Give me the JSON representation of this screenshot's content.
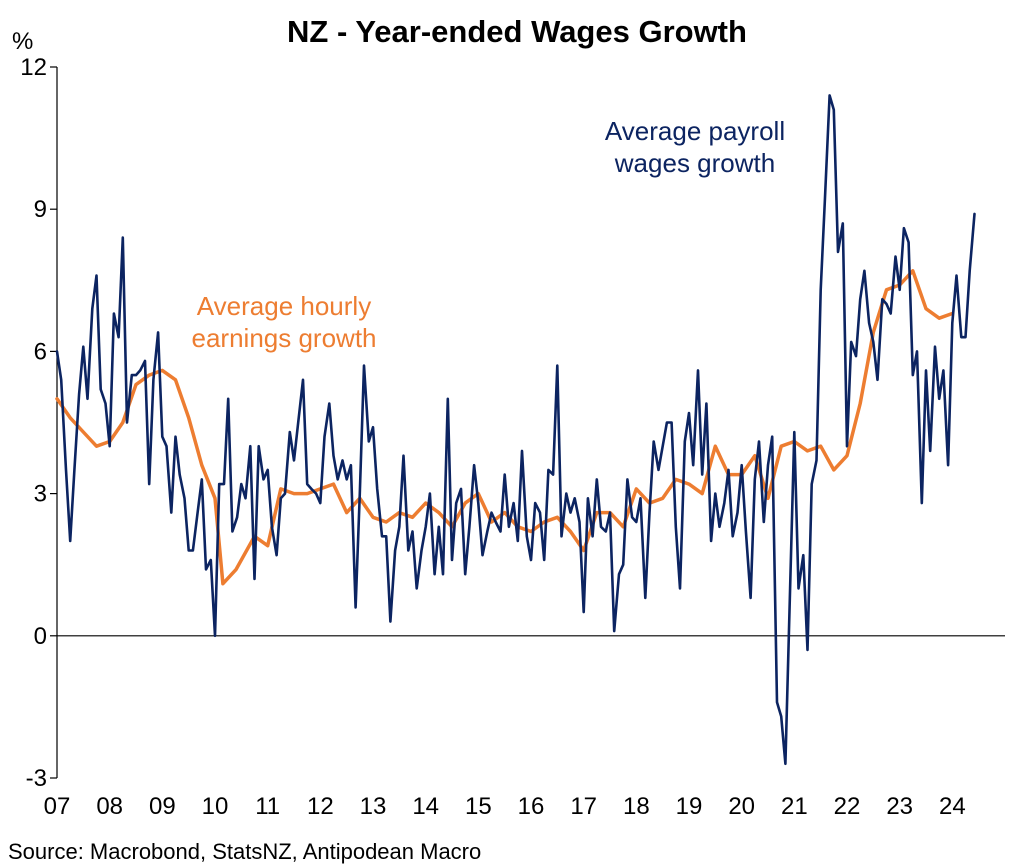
{
  "chart_data": {
    "type": "line",
    "title": "NZ - Year-ended Wages Growth",
    "ylabel": "%",
    "xlabel": "",
    "ylim": [
      -3,
      12
    ],
    "yticks": [
      -3,
      0,
      3,
      6,
      9,
      12
    ],
    "xlim": [
      2007.0,
      2025.0
    ],
    "xticks": [
      {
        "value": 2007,
        "label": "07"
      },
      {
        "value": 2008,
        "label": "08"
      },
      {
        "value": 2009,
        "label": "09"
      },
      {
        "value": 2010,
        "label": "10"
      },
      {
        "value": 2011,
        "label": "11"
      },
      {
        "value": 2012,
        "label": "12"
      },
      {
        "value": 2013,
        "label": "13"
      },
      {
        "value": 2014,
        "label": "14"
      },
      {
        "value": 2015,
        "label": "15"
      },
      {
        "value": 2016,
        "label": "16"
      },
      {
        "value": 2017,
        "label": "17"
      },
      {
        "value": 2018,
        "label": "18"
      },
      {
        "value": 2019,
        "label": "19"
      },
      {
        "value": 2020,
        "label": "20"
      },
      {
        "value": 2021,
        "label": "21"
      },
      {
        "value": 2022,
        "label": "22"
      },
      {
        "value": 2023,
        "label": "23"
      },
      {
        "value": 2024,
        "label": "24"
      }
    ],
    "grid": false,
    "annotations": [
      "Average hourly\nearnings growth",
      "Average payroll\nwages growth"
    ],
    "source": "Source: Macrobond, StatsNZ, Antipodean Macro",
    "series": [
      {
        "name": "Average hourly earnings growth",
        "color": "#ED7D31",
        "points": [
          [
            2007.0,
            5.0
          ],
          [
            2007.25,
            4.6
          ],
          [
            2007.5,
            4.3
          ],
          [
            2007.75,
            4.0
          ],
          [
            2008.0,
            4.1
          ],
          [
            2008.25,
            4.5
          ],
          [
            2008.5,
            5.3
          ],
          [
            2008.75,
            5.5
          ],
          [
            2009.0,
            5.6
          ],
          [
            2009.25,
            5.4
          ],
          [
            2009.5,
            4.6
          ],
          [
            2009.75,
            3.6
          ],
          [
            2010.0,
            2.9
          ],
          [
            2010.15,
            1.1
          ],
          [
            2010.4,
            1.4
          ],
          [
            2010.75,
            2.1
          ],
          [
            2011.0,
            1.9
          ],
          [
            2011.25,
            3.1
          ],
          [
            2011.5,
            3.0
          ],
          [
            2011.75,
            3.0
          ],
          [
            2012.0,
            3.1
          ],
          [
            2012.25,
            3.2
          ],
          [
            2012.5,
            2.6
          ],
          [
            2012.75,
            2.9
          ],
          [
            2013.0,
            2.5
          ],
          [
            2013.25,
            2.4
          ],
          [
            2013.5,
            2.6
          ],
          [
            2013.75,
            2.5
          ],
          [
            2014.0,
            2.8
          ],
          [
            2014.25,
            2.6
          ],
          [
            2014.5,
            2.3
          ],
          [
            2014.75,
            2.8
          ],
          [
            2015.0,
            3.0
          ],
          [
            2015.25,
            2.4
          ],
          [
            2015.5,
            2.6
          ],
          [
            2015.75,
            2.3
          ],
          [
            2016.0,
            2.2
          ],
          [
            2016.25,
            2.4
          ],
          [
            2016.5,
            2.5
          ],
          [
            2016.75,
            2.2
          ],
          [
            2017.0,
            1.8
          ],
          [
            2017.25,
            2.6
          ],
          [
            2017.5,
            2.6
          ],
          [
            2017.75,
            2.3
          ],
          [
            2018.0,
            3.1
          ],
          [
            2018.25,
            2.8
          ],
          [
            2018.5,
            2.9
          ],
          [
            2018.75,
            3.3
          ],
          [
            2019.0,
            3.2
          ],
          [
            2019.25,
            3.0
          ],
          [
            2019.5,
            4.0
          ],
          [
            2019.75,
            3.4
          ],
          [
            2020.0,
            3.4
          ],
          [
            2020.25,
            3.8
          ],
          [
            2020.5,
            2.9
          ],
          [
            2020.75,
            4.0
          ],
          [
            2021.0,
            4.1
          ],
          [
            2021.25,
            3.9
          ],
          [
            2021.5,
            4.0
          ],
          [
            2021.75,
            3.5
          ],
          [
            2022.0,
            3.8
          ],
          [
            2022.25,
            4.9
          ],
          [
            2022.5,
            6.4
          ],
          [
            2022.75,
            7.3
          ],
          [
            2023.0,
            7.4
          ],
          [
            2023.25,
            7.7
          ],
          [
            2023.5,
            6.9
          ],
          [
            2023.75,
            6.7
          ],
          [
            2024.0,
            6.8
          ]
        ]
      },
      {
        "name": "Average payroll wages growth",
        "color": "#0C2461",
        "points": [
          [
            2007.0,
            6.0
          ],
          [
            2007.08,
            5.4
          ],
          [
            2007.17,
            3.5
          ],
          [
            2007.25,
            2.0
          ],
          [
            2007.33,
            3.5
          ],
          [
            2007.42,
            5.1
          ],
          [
            2007.5,
            6.1
          ],
          [
            2007.58,
            5.0
          ],
          [
            2007.67,
            6.9
          ],
          [
            2007.75,
            7.6
          ],
          [
            2007.83,
            5.2
          ],
          [
            2007.92,
            4.9
          ],
          [
            2008.0,
            4.0
          ],
          [
            2008.08,
            6.8
          ],
          [
            2008.17,
            6.3
          ],
          [
            2008.25,
            8.4
          ],
          [
            2008.33,
            4.5
          ],
          [
            2008.42,
            5.5
          ],
          [
            2008.5,
            5.5
          ],
          [
            2008.58,
            5.6
          ],
          [
            2008.67,
            5.8
          ],
          [
            2008.75,
            3.2
          ],
          [
            2008.83,
            5.4
          ],
          [
            2008.92,
            6.4
          ],
          [
            2009.0,
            4.2
          ],
          [
            2009.08,
            4.0
          ],
          [
            2009.17,
            2.6
          ],
          [
            2009.25,
            4.2
          ],
          [
            2009.33,
            3.4
          ],
          [
            2009.42,
            2.9
          ],
          [
            2009.5,
            1.8
          ],
          [
            2009.58,
            1.8
          ],
          [
            2009.67,
            2.6
          ],
          [
            2009.75,
            3.3
          ],
          [
            2009.83,
            1.4
          ],
          [
            2009.92,
            1.6
          ],
          [
            2010.0,
            0.0
          ],
          [
            2010.08,
            3.2
          ],
          [
            2010.17,
            3.2
          ],
          [
            2010.25,
            5.0
          ],
          [
            2010.33,
            2.2
          ],
          [
            2010.42,
            2.5
          ],
          [
            2010.5,
            3.2
          ],
          [
            2010.58,
            2.9
          ],
          [
            2010.67,
            4.0
          ],
          [
            2010.75,
            1.2
          ],
          [
            2010.83,
            4.0
          ],
          [
            2010.92,
            3.3
          ],
          [
            2011.0,
            3.5
          ],
          [
            2011.08,
            2.3
          ],
          [
            2011.17,
            1.7
          ],
          [
            2011.25,
            2.9
          ],
          [
            2011.33,
            3.0
          ],
          [
            2011.42,
            4.3
          ],
          [
            2011.5,
            3.7
          ],
          [
            2011.58,
            4.5
          ],
          [
            2011.67,
            5.4
          ],
          [
            2011.75,
            3.2
          ],
          [
            2011.83,
            3.1
          ],
          [
            2011.92,
            3.0
          ],
          [
            2012.0,
            2.8
          ],
          [
            2012.08,
            4.2
          ],
          [
            2012.17,
            4.9
          ],
          [
            2012.25,
            3.8
          ],
          [
            2012.33,
            3.3
          ],
          [
            2012.42,
            3.7
          ],
          [
            2012.5,
            3.3
          ],
          [
            2012.58,
            3.6
          ],
          [
            2012.67,
            0.6
          ],
          [
            2012.75,
            3.0
          ],
          [
            2012.83,
            5.7
          ],
          [
            2012.92,
            4.1
          ],
          [
            2013.0,
            4.4
          ],
          [
            2013.08,
            3.1
          ],
          [
            2013.17,
            2.1
          ],
          [
            2013.25,
            2.1
          ],
          [
            2013.33,
            0.3
          ],
          [
            2013.42,
            1.8
          ],
          [
            2013.5,
            2.3
          ],
          [
            2013.58,
            3.8
          ],
          [
            2013.67,
            1.8
          ],
          [
            2013.75,
            2.2
          ],
          [
            2013.83,
            1.0
          ],
          [
            2013.92,
            1.8
          ],
          [
            2014.0,
            2.3
          ],
          [
            2014.08,
            3.0
          ],
          [
            2014.17,
            1.3
          ],
          [
            2014.25,
            2.3
          ],
          [
            2014.33,
            1.3
          ],
          [
            2014.42,
            5.0
          ],
          [
            2014.5,
            1.6
          ],
          [
            2014.58,
            2.8
          ],
          [
            2014.67,
            3.1
          ],
          [
            2014.75,
            1.3
          ],
          [
            2014.83,
            2.3
          ],
          [
            2014.92,
            3.6
          ],
          [
            2015.0,
            2.8
          ],
          [
            2015.08,
            1.7
          ],
          [
            2015.17,
            2.2
          ],
          [
            2015.25,
            2.6
          ],
          [
            2015.33,
            2.4
          ],
          [
            2015.42,
            2.2
          ],
          [
            2015.5,
            3.4
          ],
          [
            2015.58,
            2.3
          ],
          [
            2015.67,
            2.8
          ],
          [
            2015.75,
            2.0
          ],
          [
            2015.83,
            3.9
          ],
          [
            2015.92,
            2.1
          ],
          [
            2016.0,
            1.6
          ],
          [
            2016.08,
            2.8
          ],
          [
            2016.17,
            2.6
          ],
          [
            2016.25,
            1.6
          ],
          [
            2016.33,
            3.5
          ],
          [
            2016.42,
            3.4
          ],
          [
            2016.5,
            5.7
          ],
          [
            2016.58,
            2.1
          ],
          [
            2016.67,
            3.0
          ],
          [
            2016.75,
            2.6
          ],
          [
            2016.83,
            2.9
          ],
          [
            2016.92,
            2.4
          ],
          [
            2017.0,
            0.5
          ],
          [
            2017.08,
            2.9
          ],
          [
            2017.17,
            2.1
          ],
          [
            2017.25,
            3.3
          ],
          [
            2017.33,
            2.3
          ],
          [
            2017.42,
            2.2
          ],
          [
            2017.5,
            2.6
          ],
          [
            2017.58,
            0.1
          ],
          [
            2017.67,
            1.3
          ],
          [
            2017.75,
            1.5
          ],
          [
            2017.83,
            3.3
          ],
          [
            2017.92,
            2.5
          ],
          [
            2018.0,
            2.4
          ],
          [
            2018.08,
            2.9
          ],
          [
            2018.17,
            0.8
          ],
          [
            2018.25,
            2.6
          ],
          [
            2018.33,
            4.1
          ],
          [
            2018.42,
            3.5
          ],
          [
            2018.5,
            4.0
          ],
          [
            2018.58,
            4.5
          ],
          [
            2018.67,
            4.5
          ],
          [
            2018.75,
            2.3
          ],
          [
            2018.83,
            1.0
          ],
          [
            2018.92,
            4.1
          ],
          [
            2019.0,
            4.7
          ],
          [
            2019.08,
            3.6
          ],
          [
            2019.17,
            5.6
          ],
          [
            2019.25,
            3.4
          ],
          [
            2019.33,
            4.9
          ],
          [
            2019.42,
            2.0
          ],
          [
            2019.5,
            3.0
          ],
          [
            2019.58,
            2.3
          ],
          [
            2019.67,
            2.8
          ],
          [
            2019.75,
            3.5
          ],
          [
            2019.83,
            2.1
          ],
          [
            2019.92,
            2.6
          ],
          [
            2020.0,
            3.6
          ],
          [
            2020.08,
            2.2
          ],
          [
            2020.17,
            0.8
          ],
          [
            2020.25,
            3.3
          ],
          [
            2020.33,
            4.1
          ],
          [
            2020.42,
            2.4
          ],
          [
            2020.5,
            3.6
          ],
          [
            2020.58,
            4.2
          ],
          [
            2020.67,
            -1.4
          ],
          [
            2020.75,
            -1.7
          ],
          [
            2020.83,
            -2.7
          ],
          [
            2020.92,
            1.0
          ],
          [
            2021.0,
            4.3
          ],
          [
            2021.08,
            1.0
          ],
          [
            2021.17,
            1.7
          ],
          [
            2021.25,
            -0.3
          ],
          [
            2021.33,
            3.2
          ],
          [
            2021.42,
            3.7
          ],
          [
            2021.5,
            7.3
          ],
          [
            2021.58,
            9.2
          ],
          [
            2021.67,
            11.4
          ],
          [
            2021.75,
            11.1
          ],
          [
            2021.83,
            8.1
          ],
          [
            2021.92,
            8.7
          ],
          [
            2022.0,
            4.0
          ],
          [
            2022.08,
            6.2
          ],
          [
            2022.17,
            5.9
          ],
          [
            2022.25,
            7.1
          ],
          [
            2022.33,
            7.7
          ],
          [
            2022.42,
            6.6
          ],
          [
            2022.5,
            6.2
          ],
          [
            2022.58,
            5.4
          ],
          [
            2022.67,
            7.1
          ],
          [
            2022.75,
            7.0
          ],
          [
            2022.83,
            6.8
          ],
          [
            2022.92,
            8.0
          ],
          [
            2023.0,
            7.3
          ],
          [
            2023.08,
            8.6
          ],
          [
            2023.17,
            8.3
          ],
          [
            2023.25,
            5.5
          ],
          [
            2023.33,
            6.0
          ],
          [
            2023.42,
            2.8
          ],
          [
            2023.5,
            5.6
          ],
          [
            2023.58,
            3.9
          ],
          [
            2023.67,
            6.1
          ],
          [
            2023.75,
            5.0
          ],
          [
            2023.83,
            5.6
          ],
          [
            2023.92,
            3.6
          ],
          [
            2024.0,
            6.6
          ],
          [
            2024.08,
            7.6
          ],
          [
            2024.17,
            6.3
          ],
          [
            2024.25,
            6.3
          ],
          [
            2024.33,
            7.7
          ],
          [
            2024.42,
            8.9
          ]
        ]
      }
    ]
  }
}
